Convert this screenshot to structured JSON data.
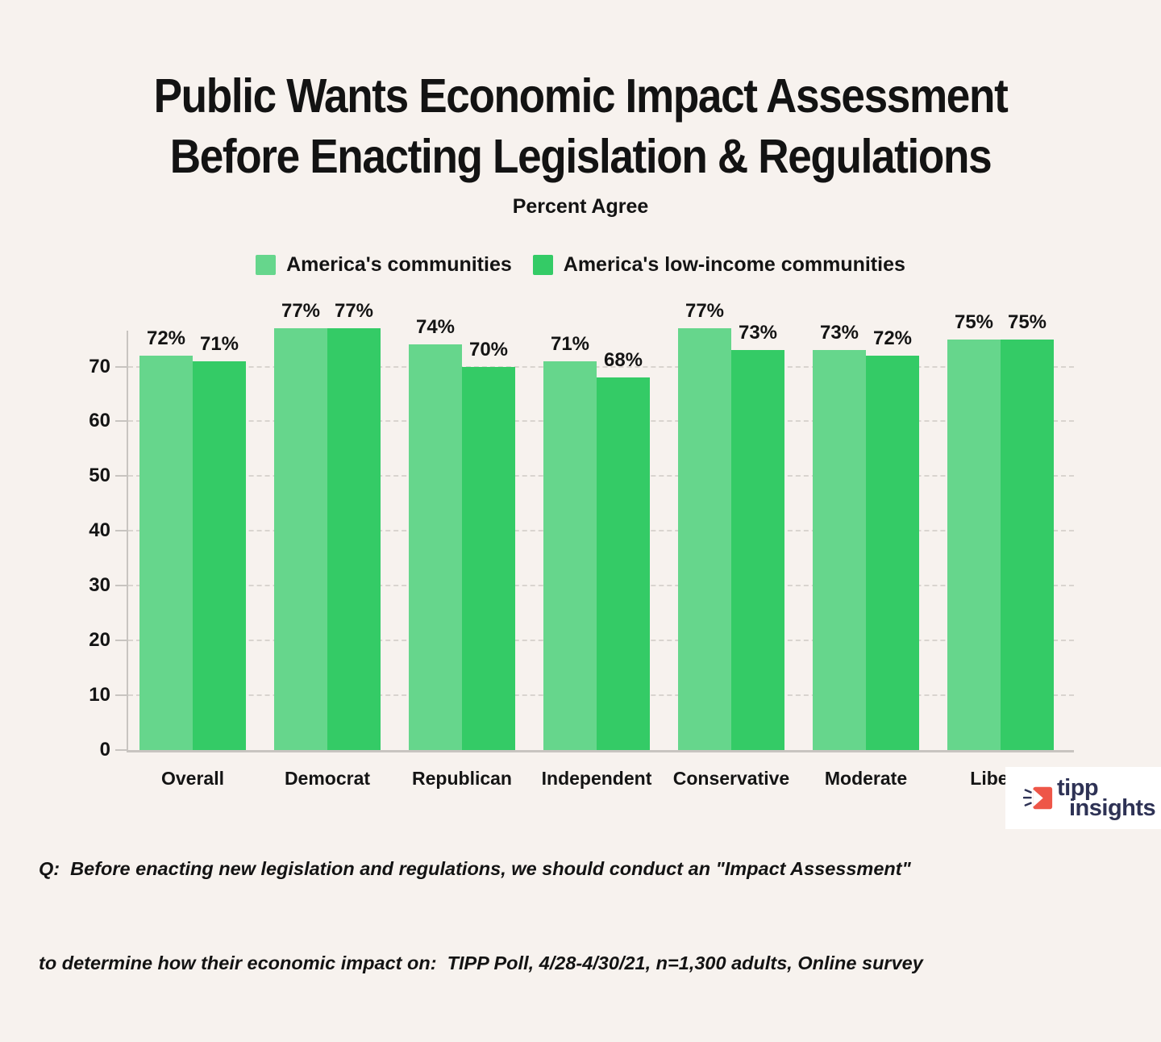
{
  "title": {
    "line1": "Public Wants Economic Impact Assessment",
    "line2": "Before Enacting Legislation & Regulations"
  },
  "subtitle": "Percent Agree",
  "legend": [
    {
      "label": "America's communities",
      "color": "#66d68c"
    },
    {
      "label": "America's low-income communities",
      "color": "#34cb66"
    }
  ],
  "chart_data": {
    "type": "bar",
    "title": "Public Wants Economic Impact Assessment Before Enacting Legislation & Regulations",
    "subtitle": "Percent Agree",
    "categories": [
      "Overall",
      "Democrat",
      "Republican",
      "Independent",
      "Conservative",
      "Moderate",
      "Liberal"
    ],
    "series": [
      {
        "name": "America's communities",
        "color": "#66d68c",
        "values": [
          72,
          77,
          74,
          71,
          77,
          73,
          75
        ]
      },
      {
        "name": "America's low-income communities",
        "color": "#34cb66",
        "values": [
          71,
          77,
          70,
          68,
          73,
          72,
          75
        ]
      }
    ],
    "value_suffix": "%",
    "xlabel": "",
    "ylabel": "",
    "yticks": [
      0,
      10,
      20,
      30,
      40,
      50,
      60,
      70
    ],
    "ylim": [
      0,
      77
    ],
    "grid": "horizontal-dashed",
    "legend_position": "top"
  },
  "footer": {
    "line1": "Q:  Before enacting new legislation and regulations, we should conduct an \"Impact Assessment\"",
    "line2": "to determine how their economic impact on:  TIPP Poll, 4/28-4/30/21, n=1,300 adults, Online survey"
  },
  "logo": {
    "line1": "tipp",
    "line2": "insights",
    "navy": "#2e3255",
    "red": "#ee5648"
  },
  "colors": {
    "background": "#f7f2ee",
    "axis": "#c8c4c0",
    "gridline": "#d9d4cf",
    "text": "#141414"
  }
}
